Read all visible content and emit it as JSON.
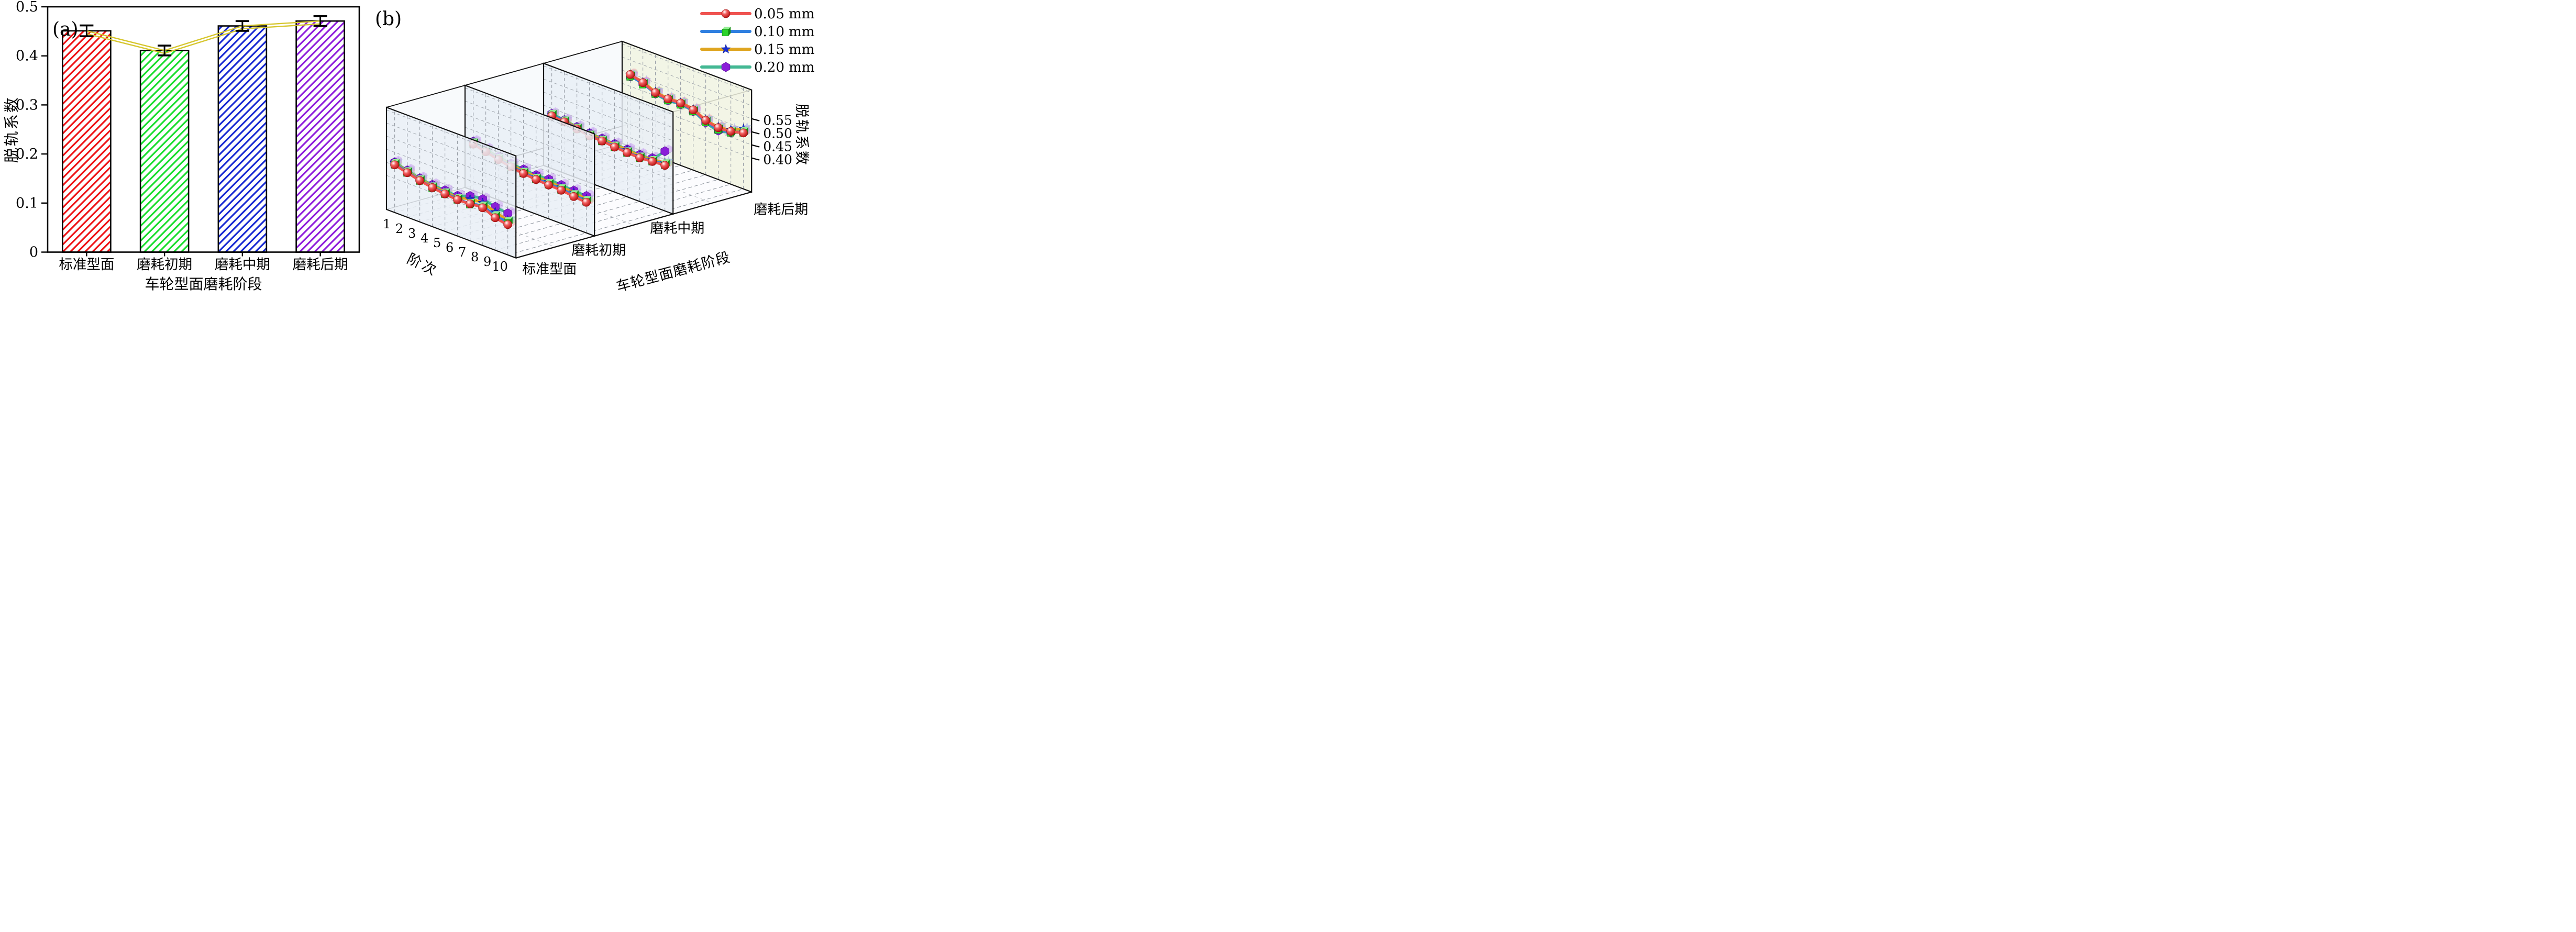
{
  "chart_data": [
    {
      "type": "bar",
      "panel_label": "(a)",
      "ylabel": "脱轨系数",
      "xlabel": "车轮型面磨耗阶段",
      "categories": [
        "标准型面",
        "磨耗初期",
        "磨耗中期",
        "磨耗后期"
      ],
      "values": [
        0.451,
        0.411,
        0.461,
        0.471
      ],
      "errors": [
        0.011,
        0.01,
        0.01,
        0.01
      ],
      "ylim": [
        0,
        0.5
      ],
      "yticks": [
        0,
        0.1,
        0.2,
        0.3,
        0.4,
        0.5
      ],
      "ytick_labels": [
        "0",
        "0.1",
        "0.2",
        "0.3",
        "0.4",
        "0.5"
      ],
      "bar_colors": [
        "#ee1013",
        "#17dd2c",
        "#1527d2",
        "#8d1bdb"
      ],
      "bar_fill": "#ffffff",
      "bar_edge_color": "#000000",
      "connector_color": "#d6c62e",
      "error_bar_color": "#000000",
      "grid": false,
      "legend_position": "none"
    },
    {
      "type": "line3d",
      "panel_label": "(b)",
      "zlabel": "脱轨系数",
      "order_axis_label": "阶次",
      "stage_axis_label": "车轮型面磨耗阶段",
      "orders": [
        1,
        2,
        3,
        4,
        5,
        6,
        7,
        8,
        9,
        10
      ],
      "stages": [
        "标准型面",
        "磨耗初期",
        "磨耗中期",
        "磨耗后期"
      ],
      "zticks": [
        0.4,
        0.45,
        0.5,
        0.55
      ],
      "ztick_labels": [
        "0.40",
        "0.45",
        "0.50",
        "0.55"
      ],
      "zlim_visible": [
        0.4,
        0.55
      ],
      "wall_colors": [
        "#e9eef6",
        "#e9eef6",
        "#e9eef6",
        "#f1f3e2"
      ],
      "grid_color": "#9aa0a8",
      "legend_position": "top-right",
      "series": [
        {
          "name": "0.05 mm",
          "line_color": "#ef5350",
          "marker": "sphere",
          "marker_color": "#d61515",
          "values_by_stage": [
            [
              0.452,
              0.44,
              0.428,
              0.419,
              0.413,
              0.409,
              0.411,
              0.414,
              0.394,
              0.386
            ],
            [
              0.447,
              0.436,
              0.424,
              0.414,
              0.407,
              0.402,
              0.399,
              0.397,
              0.391,
              0.387
            ],
            [
              0.471,
              0.466,
              0.457,
              0.449,
              0.447,
              0.442,
              0.439,
              0.437,
              0.441,
              0.444
            ],
            [
              0.545,
              0.532,
              0.512,
              0.506,
              0.508,
              0.5,
              0.478,
              0.468,
              0.472,
              0.484
            ]
          ]
        },
        {
          "name": "0.10 mm",
          "line_color": "#2f7fe0",
          "marker": "cube",
          "marker_color": "#2bd42b",
          "values_by_stage": [
            [
              0.456,
              0.443,
              0.43,
              0.421,
              0.416,
              0.412,
              0.412,
              0.42,
              0.401,
              0.397
            ],
            [
              0.451,
              0.439,
              0.427,
              0.417,
              0.411,
              0.406,
              0.404,
              0.402,
              0.397,
              0.393
            ],
            [
              0.476,
              0.469,
              0.459,
              0.451,
              0.449,
              0.445,
              0.441,
              0.439,
              0.444,
              0.449
            ],
            [
              0.54,
              0.528,
              0.51,
              0.503,
              0.505,
              0.497,
              0.474,
              0.463,
              0.47,
              0.488
            ]
          ]
        },
        {
          "name": "0.15 mm",
          "line_color": "#dfa520",
          "marker": "star",
          "marker_color": "#1b2fd0",
          "values_by_stage": [
            [
              0.459,
              0.446,
              0.434,
              0.426,
              0.421,
              0.418,
              0.429,
              0.433,
              0.416,
              0.402
            ],
            [
              0.454,
              0.442,
              0.431,
              0.422,
              0.417,
              0.413,
              0.412,
              0.409,
              0.407,
              0.399
            ],
            [
              0.474,
              0.471,
              0.463,
              0.457,
              0.454,
              0.451,
              0.449,
              0.445,
              0.449,
              0.454
            ],
            [
              0.542,
              0.535,
              0.515,
              0.509,
              0.51,
              0.503,
              0.48,
              0.472,
              0.478,
              0.5
            ]
          ]
        },
        {
          "name": "0.20 mm",
          "line_color": "#43b893",
          "marker": "hexagon",
          "marker_color": "#8a1fd8",
          "values_by_stage": [
            [
              0.462,
              0.449,
              0.437,
              0.43,
              0.427,
              0.424,
              0.441,
              0.447,
              0.436,
              0.429
            ],
            [
              0.457,
              0.445,
              0.435,
              0.427,
              0.423,
              0.419,
              0.421,
              0.417,
              0.414,
              0.411
            ],
            [
              0.479,
              0.473,
              0.465,
              0.459,
              0.457,
              0.454,
              0.451,
              0.449,
              0.454,
              0.498
            ],
            [
              0.538,
              0.53,
              0.508,
              0.5,
              0.503,
              0.495,
              0.47,
              0.457,
              0.468,
              0.486
            ]
          ]
        }
      ]
    }
  ]
}
